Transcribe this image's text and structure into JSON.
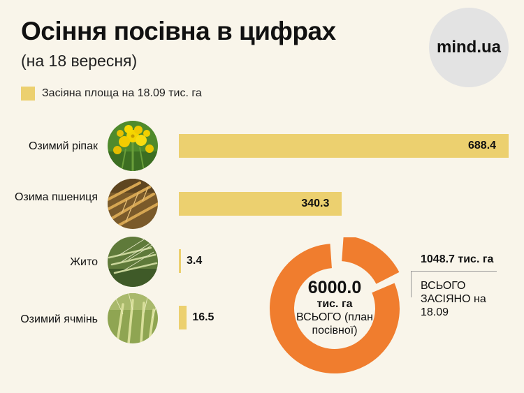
{
  "header": {
    "title": "Осіння посівна в цифрах",
    "subtitle": "(на 18 вересня)",
    "logo": "mind.ua"
  },
  "colors": {
    "bar": "#ecd06f",
    "donut": "#f07d2e",
    "background": "#f9f5ea"
  },
  "chart_data": [
    {
      "type": "bar",
      "orientation": "horizontal",
      "legend": "Засіяна площа на 18.09 тис. га",
      "categories": [
        "Озимий ріпак",
        "Озима пшениця",
        "Жито",
        "Озимий ячмінь"
      ],
      "values": [
        688.4,
        340.3,
        3.4,
        16.5
      ],
      "value_labels": [
        "688.4",
        "340.3",
        "3.4",
        "16.5"
      ],
      "icons": [
        "rapeseed-flower-icon",
        "wheat-ears-icon",
        "rye-ears-icon",
        "barley-ears-icon"
      ]
    },
    {
      "type": "pie",
      "style": "donut",
      "total": 6000.0,
      "sown": 1048.7,
      "center": {
        "value": "6000.0",
        "unit": "тис. га",
        "description": "ВСЬОГО (план посівної)"
      },
      "annotation": {
        "value": "1048.7 тис. га",
        "description": "ВСЬОГО ЗАСІЯНО на 18.09"
      }
    }
  ]
}
